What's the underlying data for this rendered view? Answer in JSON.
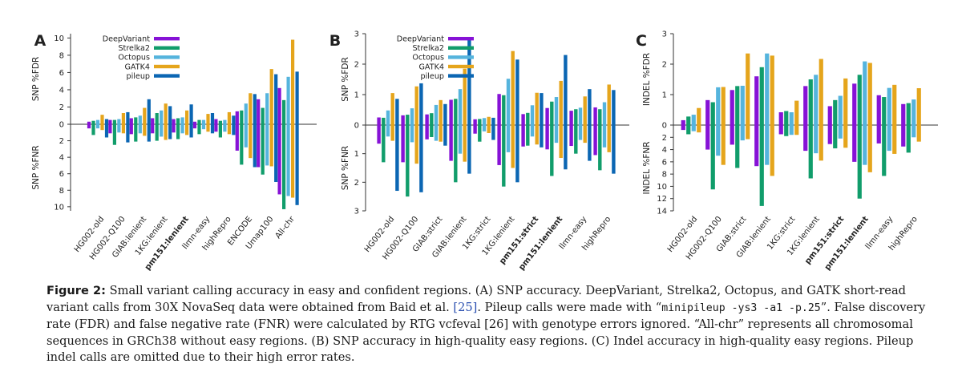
{
  "series_colors": {
    "DeepVariant": "#8612d6",
    "Strelka2": "#119d6b",
    "Octopus": "#55b4dd",
    "GATK4": "#e5a51c",
    "pileup": "#0b66b3"
  },
  "chart_data": [
    {
      "id": "A",
      "panel_label": "A",
      "type": "bar",
      "title": "SNP accuracy",
      "ylabel_top": "SNP %FDR",
      "ylabel_bottom": "SNP %FNR",
      "top_ticks": [
        "2",
        "4",
        "6",
        "8",
        "10"
      ],
      "bottom_ticks": [
        "2",
        "4",
        "6",
        "8",
        "10"
      ],
      "zero_tick": "0",
      "ylim_top": 10.5,
      "ylim_bottom": 10.5,
      "legend": [
        "DeepVariant",
        "Strelka2",
        "Octopus",
        "GATK4",
        "pileup"
      ],
      "legend_position": "top-left",
      "categories": [
        "HG002-old",
        "HG002-Q100",
        "GIAB:lenient",
        "1KG:lenient",
        "pm151:lenient",
        "llmn-easy",
        "highRepro",
        "ENCODE",
        "Umap100",
        "All-chr"
      ],
      "bold_categories": [
        "pm151:lenient"
      ],
      "series": [
        {
          "name": "DeepVariant",
          "fdr": [
            0.3,
            0.5,
            0.7,
            0.7,
            0.6,
            0.3,
            0.6,
            1.5,
            2.9,
            4.2
          ],
          "fnr": [
            0.5,
            1.1,
            1.2,
            1.1,
            1.0,
            0.5,
            0.9,
            3.2,
            5.2,
            8.5
          ]
        },
        {
          "name": "Strelka2",
          "fdr": [
            0.4,
            0.5,
            0.8,
            1.3,
            0.7,
            0.5,
            0.4,
            1.6,
            1.9,
            2.8
          ],
          "fnr": [
            1.3,
            2.5,
            2.1,
            2.0,
            1.8,
            1.2,
            1.6,
            4.9,
            6.1,
            10.3
          ]
        },
        {
          "name": "Octopus",
          "fdr": [
            0.5,
            0.6,
            1.0,
            1.6,
            0.8,
            0.5,
            0.5,
            2.4,
            3.6,
            5.5
          ],
          "fnr": [
            0.5,
            1.0,
            1.1,
            1.5,
            1.1,
            0.6,
            0.9,
            2.8,
            5.0,
            8.7
          ]
        },
        {
          "name": "GATK4",
          "fdr": [
            1.1,
            1.3,
            1.9,
            2.4,
            1.6,
            1.2,
            1.4,
            3.6,
            6.4,
            9.8
          ],
          "fnr": [
            0.7,
            1.1,
            1.4,
            1.9,
            1.3,
            0.9,
            1.2,
            4.1,
            5.1,
            8.9
          ]
        },
        {
          "name": "pileup",
          "fdr": [
            0.6,
            1.4,
            2.9,
            2.1,
            2.3,
            1.3,
            1.0,
            3.5,
            5.8,
            6.1
          ],
          "fnr": [
            1.6,
            2.2,
            2.1,
            1.8,
            1.6,
            1.1,
            1.3,
            5.2,
            7.0,
            9.8
          ]
        }
      ]
    },
    {
      "id": "B",
      "panel_label": "B",
      "type": "bar",
      "title": "SNP accuracy in high-quality easy regions",
      "ylabel_top": "SNP %FDR",
      "ylabel_bottom": "SNP %FNR",
      "top_ticks": [
        "1",
        "2",
        "3"
      ],
      "bottom_ticks": [
        "1",
        "2",
        "3"
      ],
      "zero_tick": "0",
      "ylim_top": 3,
      "ylim_bottom": 3,
      "legend": [
        "DeepVariant",
        "Strelka2",
        "Octopus",
        "GATK4",
        "pileup"
      ],
      "legend_position": "top-left",
      "categories": [
        "HG002-old",
        "HG002-Q100",
        "GIAB:strict",
        "GIAB:lenient",
        "1KG:strict",
        "1KG:lenient",
        "pm151:strict",
        "pm151:lenient",
        "llmn-easy",
        "highRepro"
      ],
      "bold_categories": [
        "pm151:strict",
        "pm151:lenient"
      ],
      "series": [
        {
          "name": "DeepVariant",
          "fdr": [
            0.25,
            0.32,
            0.35,
            0.83,
            0.19,
            1.02,
            0.36,
            0.56,
            0.47,
            0.58
          ],
          "fnr": [
            0.65,
            1.3,
            0.5,
            1.25,
            0.3,
            1.4,
            0.75,
            0.85,
            0.73,
            1.05
          ]
        },
        {
          "name": "Strelka2",
          "fdr": [
            0.24,
            0.34,
            0.39,
            0.86,
            0.2,
            0.98,
            0.4,
            0.77,
            0.52,
            0.52
          ],
          "fnr": [
            1.3,
            2.5,
            0.42,
            2.0,
            0.58,
            2.15,
            0.72,
            1.78,
            1.0,
            1.58
          ]
        },
        {
          "name": "Octopus",
          "fdr": [
            0.48,
            0.55,
            0.66,
            1.18,
            0.23,
            1.52,
            0.65,
            0.92,
            0.57,
            0.75
          ],
          "fnr": [
            0.4,
            0.6,
            0.55,
            1.0,
            0.22,
            0.95,
            0.4,
            0.62,
            0.52,
            0.78
          ]
        },
        {
          "name": "GATK4",
          "fdr": [
            1.05,
            1.27,
            0.82,
            1.85,
            0.27,
            2.43,
            1.06,
            1.45,
            0.94,
            1.33
          ],
          "fnr": [
            0.55,
            1.35,
            0.58,
            1.28,
            0.28,
            1.5,
            0.68,
            1.15,
            0.62,
            0.95
          ]
        },
        {
          "name": "pileup",
          "fdr": [
            0.86,
            1.37,
            0.69,
            2.82,
            0.24,
            2.15,
            1.05,
            2.3,
            1.18,
            1.15
          ],
          "fnr": [
            2.3,
            2.35,
            0.72,
            1.7,
            0.52,
            2.0,
            0.78,
            1.55,
            1.25,
            1.7
          ]
        }
      ]
    },
    {
      "id": "C",
      "panel_label": "C",
      "type": "bar",
      "title": "Indel accuracy in high-quality easy regions",
      "ylabel_top": "INDEL %FDR",
      "ylabel_bottom": "INDEL %FNR",
      "top_ticks": [
        "1",
        "2",
        "3"
      ],
      "bottom_ticks": [
        "2",
        "4",
        "6",
        "8",
        "10",
        "12",
        "14"
      ],
      "zero_tick": "0",
      "ylim_top": 3,
      "ylim_bottom": 14,
      "categories": [
        "HG002-old",
        "HG002-Q100",
        "GIAB:strict",
        "GIAB:lenient",
        "1KG:strict",
        "1KG:lenient",
        "pm151:strict",
        "pm151:lenient",
        "llmn-easy",
        "highRepro"
      ],
      "bold_categories": [
        "pm151:strict",
        "pm151:lenient"
      ],
      "series": [
        {
          "name": "DeepVariant",
          "fdr": [
            0.16,
            0.82,
            1.15,
            1.6,
            0.42,
            1.28,
            0.62,
            1.36,
            0.98,
            0.69
          ],
          "fnr": [
            0.8,
            4.0,
            3.2,
            6.7,
            1.5,
            4.2,
            3.1,
            6.0,
            3.0,
            3.5
          ]
        },
        {
          "name": "Strelka2",
          "fdr": [
            0.28,
            0.75,
            1.28,
            1.9,
            0.46,
            1.5,
            0.82,
            1.65,
            0.92,
            0.72
          ],
          "fnr": [
            1.5,
            10.5,
            7.0,
            13.2,
            1.8,
            8.7,
            3.8,
            12.0,
            8.3,
            4.5
          ]
        },
        {
          "name": "Octopus",
          "fdr": [
            0.34,
            1.24,
            1.29,
            2.35,
            0.42,
            1.65,
            0.96,
            2.09,
            1.22,
            0.84
          ],
          "fnr": [
            1.0,
            5.0,
            2.5,
            6.5,
            1.6,
            4.6,
            2.2,
            6.5,
            4.2,
            2.0
          ]
        },
        {
          "name": "GATK4",
          "fdr": [
            0.56,
            1.25,
            2.35,
            2.28,
            0.8,
            2.17,
            1.53,
            2.04,
            1.32,
            1.21
          ],
          "fnr": [
            1.2,
            6.5,
            2.3,
            8.3,
            1.6,
            5.8,
            3.7,
            7.7,
            4.7,
            2.7
          ]
        }
      ]
    }
  ],
  "caption": {
    "label": "Figure 2:",
    "lines": [
      "Small variant calling accuracy in easy and confident regions. (A) SNP accuracy. DeepVariant, Strelka2, Octopus, and GATK short-read variant",
      "calls from 30X NovaSeq data were obtained from Baid et al. [25]. Pileup calls were made with “minipileup -ys3 -a1 -p.25”. False discovery rate",
      "(FDR) and false negative rate (FNR) were calculated by RTG vcfeval [26] with genotype errors ignored. “All-chr” represents all chromosomal sequences",
      "in GRCh38 without easy regions. (B) SNP accuracy in high-quality easy regions. (C) Indel accuracy in high-quality easy regions. Pileup indel calls are",
      "omitted due to their high error rates."
    ]
  }
}
